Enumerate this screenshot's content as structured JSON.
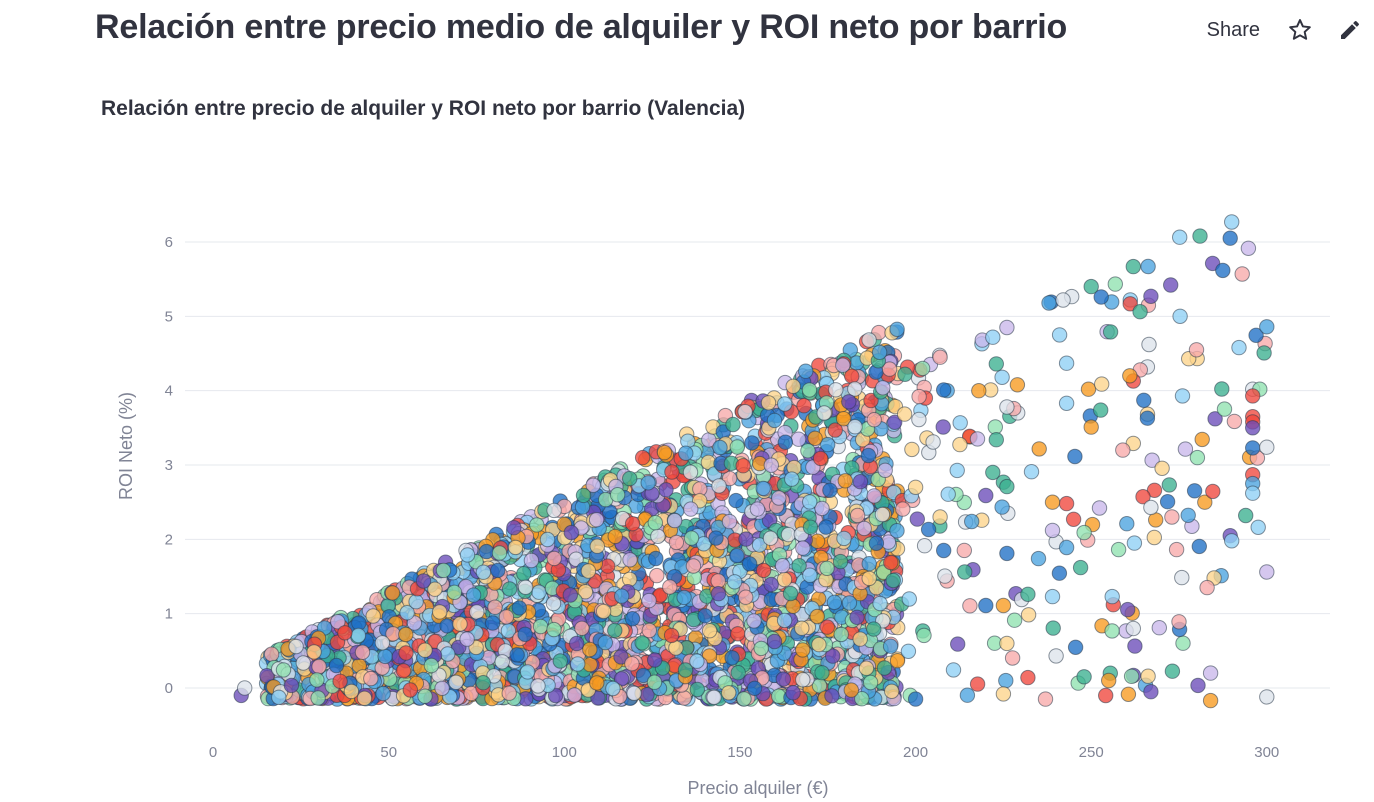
{
  "header": {
    "title": "Relación entre precio medio de alquiler y ROI neto por barrio",
    "share_label": "Share",
    "star_icon": "star-icon",
    "edit_icon": "pencil-icon"
  },
  "chart_data": {
    "type": "scatter",
    "title": "Relación entre precio de alquiler y ROI neto por barrio (Valencia)",
    "xlabel": "Precio alquiler (€)",
    "ylabel": "ROI Neto (%)",
    "xlim": [
      -8,
      318
    ],
    "ylim": [
      -0.7,
      6.7
    ],
    "x_ticks": [
      0,
      50,
      100,
      150,
      200,
      250,
      300
    ],
    "y_ticks": [
      0,
      1,
      2,
      3,
      4,
      5,
      6
    ],
    "grid": "horizontal",
    "legend": "none",
    "palette": [
      "#1f6fc5",
      "#f0473c",
      "#f79a1f",
      "#3bb08f",
      "#6a4bb8",
      "#8ed0f5",
      "#f7a9a9",
      "#fdd38a",
      "#8fe2b0",
      "#c9b7ea",
      "#dde3ea",
      "#4aa3df"
    ],
    "point_count_description": "dense cloud of several thousand neighborhood observations bounded by ROI ≈ price/40",
    "highlighted_points": [
      {
        "x": 8,
        "y": -0.1
      },
      {
        "x": 9,
        "y": 0.0
      },
      {
        "x": 174,
        "y": 3.7
      },
      {
        "x": 181,
        "y": 3.85
      },
      {
        "x": 197,
        "y": 4.22
      },
      {
        "x": 202,
        "y": 4.3
      },
      {
        "x": 207,
        "y": 4.45
      },
      {
        "x": 219,
        "y": 4.68
      },
      {
        "x": 222,
        "y": 4.72
      },
      {
        "x": 226,
        "y": 4.85
      },
      {
        "x": 238,
        "y": 5.18
      },
      {
        "x": 242,
        "y": 5.22
      },
      {
        "x": 250,
        "y": 5.4
      },
      {
        "x": 262,
        "y": 5.67
      },
      {
        "x": 267,
        "y": 5.27
      },
      {
        "x": 281,
        "y": 6.08
      },
      {
        "x": 290,
        "y": 6.27
      },
      {
        "x": 293,
        "y": 5.57
      },
      {
        "x": 300,
        "y": 4.86
      },
      {
        "x": 280,
        "y": 4.55
      },
      {
        "x": 296,
        "y": 4.02
      },
      {
        "x": 298,
        "y": 4.02
      },
      {
        "x": 296,
        "y": 3.93
      },
      {
        "x": 296,
        "y": 3.65
      },
      {
        "x": 296,
        "y": 3.58
      },
      {
        "x": 296,
        "y": 3.5
      },
      {
        "x": 296,
        "y": 3.23
      },
      {
        "x": 296,
        "y": 2.87
      },
      {
        "x": 296,
        "y": 2.75
      },
      {
        "x": 296,
        "y": 2.62
      },
      {
        "x": 294,
        "y": 2.32
      },
      {
        "x": 290,
        "y": 1.98
      },
      {
        "x": 300,
        "y": 3.24
      },
      {
        "x": 300,
        "y": 1.56
      },
      {
        "x": 300,
        "y": -0.12
      },
      {
        "x": 284,
        "y": 0.2
      },
      {
        "x": 284,
        "y": -0.17
      },
      {
        "x": 285,
        "y": 1.48
      },
      {
        "x": 283,
        "y": 1.35
      },
      {
        "x": 276,
        "y": 3.93
      },
      {
        "x": 275,
        "y": 0.89
      },
      {
        "x": 273,
        "y": 2.3
      },
      {
        "x": 267,
        "y": 2.43
      },
      {
        "x": 267,
        "y": -0.05
      },
      {
        "x": 266,
        "y": 3.63
      },
      {
        "x": 266,
        "y": 4.32
      },
      {
        "x": 265,
        "y": 3.87
      },
      {
        "x": 264,
        "y": 4.28
      },
      {
        "x": 262,
        "y": 4.13
      },
      {
        "x": 262,
        "y": 3.29
      },
      {
        "x": 262,
        "y": 0.8
      },
      {
        "x": 261,
        "y": 4.2
      },
      {
        "x": 259,
        "y": 3.2
      },
      {
        "x": 256,
        "y": 1.23
      },
      {
        "x": 255,
        "y": 0.1
      },
      {
        "x": 250,
        "y": 3.51
      },
      {
        "x": 249,
        "y": 1.99
      },
      {
        "x": 248,
        "y": 2.09
      },
      {
        "x": 248,
        "y": 0.15
      },
      {
        "x": 247,
        "y": 1.62
      },
      {
        "x": 245,
        "y": 2.27
      },
      {
        "x": 243,
        "y": 4.37
      },
      {
        "x": 243,
        "y": 3.83
      },
      {
        "x": 243,
        "y": 2.48
      },
      {
        "x": 243,
        "y": 1.89
      },
      {
        "x": 241,
        "y": 4.75
      },
      {
        "x": 239,
        "y": 2.5
      },
      {
        "x": 239,
        "y": 2.12
      },
      {
        "x": 239,
        "y": 1.23
      },
      {
        "x": 237,
        "y": -0.15
      },
      {
        "x": 235,
        "y": 1.74
      },
      {
        "x": 233,
        "y": 2.91
      },
      {
        "x": 232,
        "y": 1.26
      },
      {
        "x": 232,
        "y": 0.14
      },
      {
        "x": 226,
        "y": 3.78
      },
      {
        "x": 226,
        "y": 2.71
      },
      {
        "x": 226,
        "y": 1.81
      },
      {
        "x": 226,
        "y": 0.6
      },
      {
        "x": 225,
        "y": 1.11
      },
      {
        "x": 225,
        "y": -0.08
      },
      {
        "x": 223,
        "y": 4.36
      },
      {
        "x": 223,
        "y": 3.34
      },
      {
        "x": 222,
        "y": 2.9
      },
      {
        "x": 220,
        "y": 2.59
      },
      {
        "x": 220,
        "y": 1.11
      },
      {
        "x": 218,
        "y": 4.0
      },
      {
        "x": 216,
        "y": 2.24
      },
      {
        "x": 214,
        "y": 1.56
      },
      {
        "x": 212,
        "y": 0.59
      },
      {
        "x": 209,
        "y": 4.0
      },
      {
        "x": 208,
        "y": 4.01
      },
      {
        "x": 208,
        "y": 1.85
      },
      {
        "x": 207,
        "y": 2.3
      },
      {
        "x": 205,
        "y": 3.31
      },
      {
        "x": 201,
        "y": 3.92
      },
      {
        "x": 200,
        "y": 2.7
      },
      {
        "x": 200,
        "y": -0.15
      }
    ]
  }
}
